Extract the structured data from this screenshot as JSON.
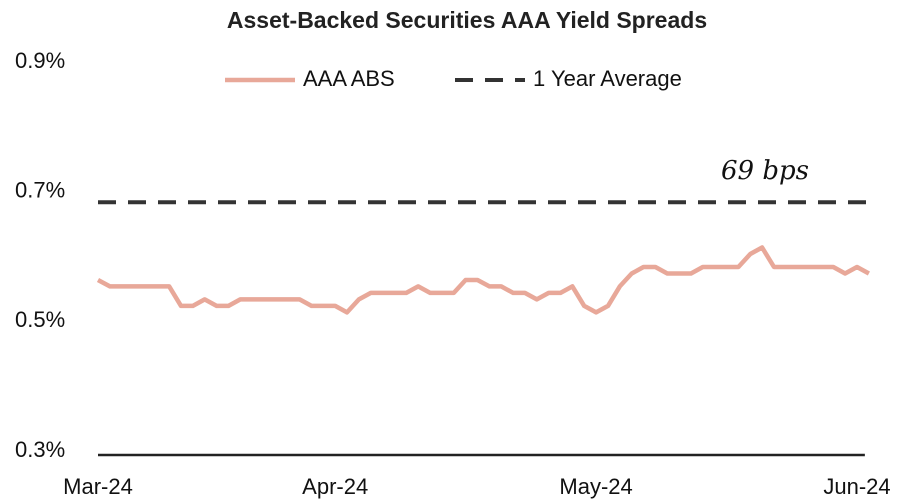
{
  "chart_data": {
    "type": "line",
    "title": "Asset-Backed Securities AAA Yield Spreads",
    "annotation": "69 bps",
    "categories": [
      "Mar-24",
      null,
      null,
      null,
      null,
      null,
      null,
      null,
      null,
      null,
      null,
      null,
      null,
      null,
      null,
      null,
      null,
      null,
      null,
      null,
      "Apr-24",
      null,
      null,
      null,
      null,
      null,
      null,
      null,
      null,
      null,
      null,
      null,
      null,
      null,
      null,
      null,
      null,
      null,
      null,
      null,
      null,
      null,
      "May-24",
      null,
      null,
      null,
      null,
      null,
      null,
      null,
      null,
      null,
      null,
      null,
      null,
      null,
      null,
      null,
      null,
      null,
      null,
      null,
      null,
      null,
      "Jun-24",
      null
    ],
    "series": [
      {
        "name": "AAA ABS",
        "color": "#e8a899",
        "dash": false,
        "values": [
          0.57,
          0.56,
          0.56,
          0.56,
          0.56,
          0.56,
          0.56,
          0.53,
          0.53,
          0.54,
          0.53,
          0.53,
          0.54,
          0.54,
          0.54,
          0.54,
          0.54,
          0.54,
          0.53,
          0.53,
          0.53,
          0.52,
          0.54,
          0.55,
          0.55,
          0.55,
          0.55,
          0.56,
          0.55,
          0.55,
          0.55,
          0.57,
          0.57,
          0.56,
          0.56,
          0.55,
          0.55,
          0.54,
          0.55,
          0.55,
          0.56,
          0.53,
          0.52,
          0.53,
          0.56,
          0.58,
          0.59,
          0.59,
          0.58,
          0.58,
          0.58,
          0.59,
          0.59,
          0.59,
          0.59,
          0.61,
          0.62,
          0.59,
          0.59,
          0.59,
          0.59,
          0.59,
          0.59,
          0.58,
          0.59,
          0.58
        ]
      },
      {
        "name": "1 Year Average",
        "color": "#333333",
        "dash": true,
        "values": [
          0.69,
          0.69,
          0.69,
          0.69,
          0.69,
          0.69,
          0.69,
          0.69,
          0.69,
          0.69,
          0.69,
          0.69,
          0.69,
          0.69,
          0.69,
          0.69,
          0.69,
          0.69,
          0.69,
          0.69,
          0.69,
          0.69,
          0.69,
          0.69,
          0.69,
          0.69,
          0.69,
          0.69,
          0.69,
          0.69,
          0.69,
          0.69,
          0.69,
          0.69,
          0.69,
          0.69,
          0.69,
          0.69,
          0.69,
          0.69,
          0.69,
          0.69,
          0.69,
          0.69,
          0.69,
          0.69,
          0.69,
          0.69,
          0.69,
          0.69,
          0.69,
          0.69,
          0.69,
          0.69,
          0.69,
          0.69,
          0.69,
          0.69,
          0.69,
          0.69,
          0.69,
          0.69,
          0.69,
          0.69,
          0.69,
          0.69
        ]
      }
    ],
    "ylim": [
      0.3,
      0.9
    ],
    "yticks": [
      {
        "value": 0.3,
        "label": "0.3%"
      },
      {
        "value": 0.5,
        "label": "0.5%"
      },
      {
        "value": 0.7,
        "label": "0.7%"
      },
      {
        "value": 0.9,
        "label": "0.9%"
      }
    ],
    "grid": false,
    "legend": "top"
  }
}
